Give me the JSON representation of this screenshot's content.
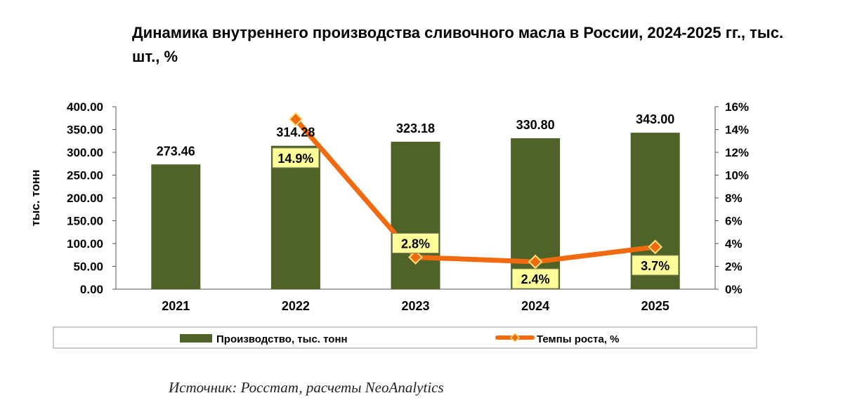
{
  "title": "Динамика внутреннего производства сливочного масла в России, 2024-2025 гг., тыс. шт., %",
  "source": "Источник: Росстат, расчеты NeoAnalytics",
  "colors": {
    "bar": "#4f6228",
    "line": "#f26a10",
    "marker_fill": "#f26a10",
    "marker_stroke": "#ffe27a",
    "label_box_fill": "#ffff99",
    "label_box_stroke": "#8a8a60"
  },
  "chart_data": {
    "type": "bar+line",
    "categories": [
      "2021",
      "2022",
      "2023",
      "2024",
      "2025"
    ],
    "series": [
      {
        "name": "Производство, тыс. тонн",
        "type": "bar",
        "axis": "left",
        "values": [
          273.46,
          314.28,
          323.18,
          330.8,
          343.0
        ],
        "labels": [
          "273.46",
          "314.28",
          "323.18",
          "330.80",
          "343.00"
        ]
      },
      {
        "name": "Темпы роста, %",
        "type": "line",
        "axis": "right",
        "values": [
          null,
          14.9,
          2.8,
          2.4,
          3.7
        ],
        "labels": [
          null,
          "14.9%",
          "2.8%",
          "2.4%",
          "3.7%"
        ]
      }
    ],
    "ylabel": "тыс. тонн",
    "ylim": [
      0,
      400
    ],
    "yticks": [
      "0.00",
      "50.00",
      "100.00",
      "150.00",
      "200.00",
      "250.00",
      "300.00",
      "350.00",
      "400.00"
    ],
    "y2lim": [
      0,
      16
    ],
    "y2ticks": [
      "0%",
      "2%",
      "4%",
      "6%",
      "8%",
      "10%",
      "12%",
      "14%",
      "16%"
    ],
    "legend_position": "bottom"
  }
}
